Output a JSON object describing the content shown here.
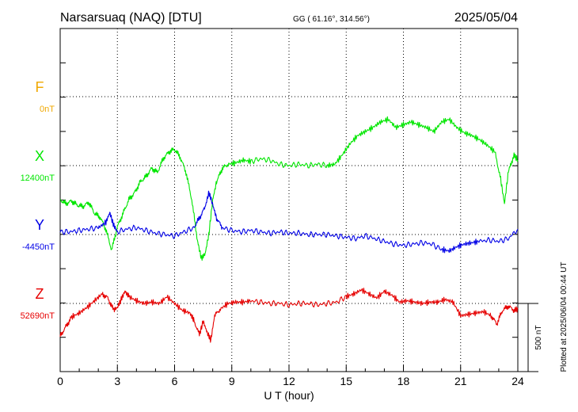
{
  "chart_data": {
    "type": "line",
    "title": "Narsarsuaq (NAQ)  [DTU]",
    "coords": "GG ( 61.16°, 314.56°)",
    "date": "2025/05/04",
    "xlabel": "U T (hour)",
    "xlim": [
      0,
      24
    ],
    "xticks": [
      "0",
      "3",
      "6",
      "9",
      "12",
      "15",
      "18",
      "21",
      "24"
    ],
    "plotted_note": "Plotted at 2025/06/04 00:44 UT",
    "scale_label": "500 nT",
    "grid": true,
    "series": [
      {
        "name": "F",
        "baseline_label": "0nT",
        "color": "#f0a800",
        "baseline": 0,
        "points": []
      },
      {
        "name": "X",
        "baseline_label": "12400nT",
        "color": "#00e600",
        "baseline": 12400,
        "points": [
          [
            0,
            12150
          ],
          [
            0.3,
            12120
          ],
          [
            0.6,
            12140
          ],
          [
            0.9,
            12110
          ],
          [
            1.2,
            12100
          ],
          [
            1.5,
            12130
          ],
          [
            1.8,
            12050
          ],
          [
            2.1,
            12020
          ],
          [
            2.4,
            11930
          ],
          [
            2.7,
            11780
          ],
          [
            3.0,
            11950
          ],
          [
            3.3,
            12050
          ],
          [
            3.6,
            12150
          ],
          [
            3.9,
            12200
          ],
          [
            4.2,
            12280
          ],
          [
            4.5,
            12320
          ],
          [
            4.8,
            12380
          ],
          [
            5.1,
            12350
          ],
          [
            5.4,
            12450
          ],
          [
            5.7,
            12500
          ],
          [
            6.0,
            12520
          ],
          [
            6.3,
            12460
          ],
          [
            6.6,
            12350
          ],
          [
            6.9,
            12150
          ],
          [
            7.2,
            11850
          ],
          [
            7.4,
            11720
          ],
          [
            7.6,
            11750
          ],
          [
            7.8,
            11900
          ],
          [
            8.0,
            12150
          ],
          [
            8.2,
            12280
          ],
          [
            8.5,
            12380
          ],
          [
            8.8,
            12410
          ],
          [
            9.2,
            12420
          ],
          [
            9.6,
            12440
          ],
          [
            10.0,
            12430
          ],
          [
            10.5,
            12450
          ],
          [
            11.0,
            12440
          ],
          [
            11.5,
            12410
          ],
          [
            12.0,
            12400
          ],
          [
            12.5,
            12410
          ],
          [
            13.0,
            12400
          ],
          [
            13.5,
            12410
          ],
          [
            14.0,
            12400
          ],
          [
            14.4,
            12410
          ],
          [
            14.8,
            12480
          ],
          [
            15.2,
            12560
          ],
          [
            15.6,
            12620
          ],
          [
            16.0,
            12650
          ],
          [
            16.4,
            12680
          ],
          [
            16.8,
            12720
          ],
          [
            17.2,
            12740
          ],
          [
            17.6,
            12680
          ],
          [
            18.0,
            12700
          ],
          [
            18.4,
            12720
          ],
          [
            18.8,
            12700
          ],
          [
            19.2,
            12680
          ],
          [
            19.6,
            12650
          ],
          [
            20.0,
            12720
          ],
          [
            20.4,
            12740
          ],
          [
            20.8,
            12680
          ],
          [
            21.2,
            12640
          ],
          [
            21.6,
            12620
          ],
          [
            22.0,
            12590
          ],
          [
            22.4,
            12550
          ],
          [
            22.8,
            12500
          ],
          [
            23.1,
            12300
          ],
          [
            23.3,
            12120
          ],
          [
            23.5,
            12350
          ],
          [
            23.8,
            12480
          ],
          [
            24.0,
            12440
          ]
        ]
      },
      {
        "name": "Y",
        "baseline_label": "-4450nT",
        "color": "#0000e6",
        "baseline": -4450,
        "points": [
          [
            0,
            -4430
          ],
          [
            0.5,
            -4430
          ],
          [
            1.0,
            -4420
          ],
          [
            1.5,
            -4410
          ],
          [
            2.0,
            -4400
          ],
          [
            2.4,
            -4360
          ],
          [
            2.6,
            -4290
          ],
          [
            2.8,
            -4380
          ],
          [
            3.0,
            -4430
          ],
          [
            3.5,
            -4410
          ],
          [
            4.0,
            -4400
          ],
          [
            4.5,
            -4420
          ],
          [
            5.0,
            -4440
          ],
          [
            5.5,
            -4450
          ],
          [
            6.0,
            -4460
          ],
          [
            6.5,
            -4430
          ],
          [
            7.0,
            -4400
          ],
          [
            7.3,
            -4330
          ],
          [
            7.6,
            -4250
          ],
          [
            7.8,
            -4140
          ],
          [
            8.0,
            -4230
          ],
          [
            8.2,
            -4330
          ],
          [
            8.5,
            -4400
          ],
          [
            9.0,
            -4420
          ],
          [
            9.5,
            -4430
          ],
          [
            10.0,
            -4420
          ],
          [
            10.5,
            -4430
          ],
          [
            11.0,
            -4440
          ],
          [
            11.5,
            -4430
          ],
          [
            12.0,
            -4440
          ],
          [
            12.5,
            -4440
          ],
          [
            13.0,
            -4450
          ],
          [
            13.5,
            -4450
          ],
          [
            14.0,
            -4450
          ],
          [
            14.5,
            -4460
          ],
          [
            15.0,
            -4470
          ],
          [
            15.5,
            -4480
          ],
          [
            16.0,
            -4460
          ],
          [
            16.5,
            -4480
          ],
          [
            17.0,
            -4500
          ],
          [
            17.5,
            -4520
          ],
          [
            18.0,
            -4530
          ],
          [
            18.5,
            -4520
          ],
          [
            19.0,
            -4510
          ],
          [
            19.5,
            -4520
          ],
          [
            20.0,
            -4560
          ],
          [
            20.4,
            -4570
          ],
          [
            20.8,
            -4540
          ],
          [
            21.2,
            -4520
          ],
          [
            21.6,
            -4510
          ],
          [
            22.0,
            -4500
          ],
          [
            22.5,
            -4490
          ],
          [
            23.0,
            -4500
          ],
          [
            23.5,
            -4480
          ],
          [
            24.0,
            -4410
          ]
        ]
      },
      {
        "name": "Z",
        "baseline_label": "52690nT",
        "color": "#e60000",
        "baseline": 52690,
        "points": [
          [
            0,
            52450
          ],
          [
            0.3,
            52520
          ],
          [
            0.6,
            52590
          ],
          [
            1.0,
            52620
          ],
          [
            1.4,
            52660
          ],
          [
            1.8,
            52710
          ],
          [
            2.2,
            52760
          ],
          [
            2.5,
            52730
          ],
          [
            2.8,
            52640
          ],
          [
            3.0,
            52660
          ],
          [
            3.2,
            52720
          ],
          [
            3.4,
            52780
          ],
          [
            3.6,
            52740
          ],
          [
            4.0,
            52710
          ],
          [
            4.4,
            52690
          ],
          [
            4.8,
            52700
          ],
          [
            5.2,
            52690
          ],
          [
            5.6,
            52740
          ],
          [
            6.0,
            52690
          ],
          [
            6.4,
            52640
          ],
          [
            6.8,
            52620
          ],
          [
            7.0,
            52570
          ],
          [
            7.3,
            52460
          ],
          [
            7.5,
            52560
          ],
          [
            7.7,
            52480
          ],
          [
            7.9,
            52420
          ],
          [
            8.1,
            52600
          ],
          [
            8.4,
            52650
          ],
          [
            8.8,
            52690
          ],
          [
            9.2,
            52700
          ],
          [
            9.6,
            52700
          ],
          [
            10.0,
            52710
          ],
          [
            10.5,
            52700
          ],
          [
            11.0,
            52690
          ],
          [
            11.5,
            52690
          ],
          [
            12.0,
            52680
          ],
          [
            12.5,
            52690
          ],
          [
            13.0,
            52690
          ],
          [
            13.5,
            52680
          ],
          [
            14.0,
            52690
          ],
          [
            14.5,
            52700
          ],
          [
            15.0,
            52740
          ],
          [
            15.4,
            52760
          ],
          [
            15.8,
            52790
          ],
          [
            16.2,
            52760
          ],
          [
            16.6,
            52730
          ],
          [
            17.0,
            52780
          ],
          [
            17.4,
            52750
          ],
          [
            17.8,
            52700
          ],
          [
            18.2,
            52710
          ],
          [
            18.6,
            52700
          ],
          [
            19.0,
            52690
          ],
          [
            19.4,
            52700
          ],
          [
            19.8,
            52700
          ],
          [
            20.2,
            52720
          ],
          [
            20.6,
            52700
          ],
          [
            21.0,
            52600
          ],
          [
            21.4,
            52610
          ],
          [
            21.8,
            52620
          ],
          [
            22.2,
            52630
          ],
          [
            22.6,
            52600
          ],
          [
            22.9,
            52540
          ],
          [
            23.2,
            52640
          ],
          [
            23.5,
            52670
          ],
          [
            23.8,
            52640
          ],
          [
            24.0,
            52650
          ]
        ]
      }
    ]
  }
}
